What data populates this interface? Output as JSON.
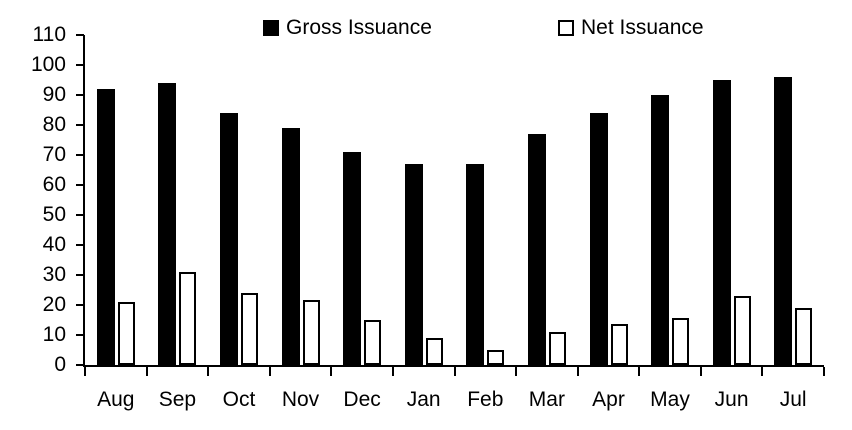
{
  "chart_data": {
    "type": "bar",
    "title": "",
    "xlabel": "",
    "ylabel": "",
    "categories": [
      "Aug",
      "Sep",
      "Oct",
      "Nov",
      "Dec",
      "Jan",
      "Feb",
      "Mar",
      "Apr",
      "May",
      "Jun",
      "Jul"
    ],
    "series": [
      {
        "name": "Gross Issuance",
        "values": [
          92,
          94,
          84,
          79,
          71,
          67,
          67,
          77,
          84,
          90,
          95,
          96
        ],
        "fill": "#000000",
        "border": "#000000"
      },
      {
        "name": "Net Issuance",
        "values": [
          21,
          31,
          24,
          21.5,
          15,
          9,
          5,
          11,
          13.5,
          15.5,
          23,
          19
        ],
        "fill": "#ffffff",
        "border": "#000000"
      }
    ],
    "ylim": [
      0,
      110
    ],
    "yticks": [
      0,
      10,
      20,
      30,
      40,
      50,
      60,
      70,
      80,
      90,
      100,
      110
    ],
    "grid": false,
    "legend_position": "top",
    "axis_color": "#000000",
    "background_color": "#ffffff"
  }
}
